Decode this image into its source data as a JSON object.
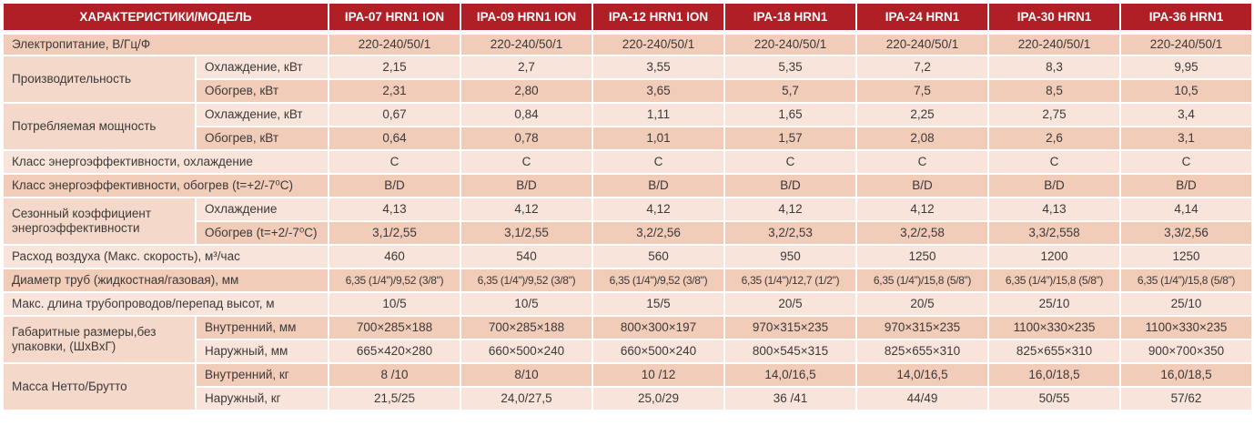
{
  "table": {
    "corner_header": "ХАРАКТЕРИСТИКИ/МОДЕЛЬ",
    "models": [
      "IPA-07 HRN1 ION",
      "IPA-09 HRN1 ION",
      "IPA-12 HRN1 ION",
      "IPA-18 HRN1",
      "IPA-24 HRN1",
      "IPA-30 HRN1",
      "IPA-36 HRN1"
    ],
    "rows": [
      {
        "full": true,
        "label": "Электропитание, В/Гц/Ф",
        "values": [
          "220-240/50/1",
          "220-240/50/1",
          "220-240/50/1",
          "220-240/50/1",
          "220-240/50/1",
          "220-240/50/1",
          "220-240/50/1"
        ]
      },
      {
        "group": "Производительность",
        "span": 2,
        "sub": "Охлаждение, кВт",
        "values": [
          "2,15",
          "2,7",
          "3,55",
          "5,35",
          "7,2",
          "8,3",
          "9,95"
        ]
      },
      {
        "sub": "Обогрев, кВт",
        "values": [
          "2,31",
          "2,80",
          "3,65",
          "5,7",
          "7,5",
          "8,5",
          "10,5"
        ]
      },
      {
        "group": "Потребляемая мощность",
        "span": 2,
        "sub": "Охлаждение, кВт",
        "values": [
          "0,67",
          "0,84",
          "1,11",
          "1,65",
          "2,25",
          "2,75",
          "3,4"
        ]
      },
      {
        "sub": "Обогрев, кВт",
        "values": [
          "0,64",
          "0,78",
          "1,01",
          "1,57",
          "2,08",
          "2,6",
          "3,1"
        ]
      },
      {
        "full": true,
        "label": "Класс энергоэффективности, охлаждение",
        "values": [
          "C",
          "C",
          "C",
          "C",
          "C",
          "C",
          "C"
        ]
      },
      {
        "full": true,
        "label": "Класс энергоэффективности, обогрев (t=+2/-7⁰C)",
        "values": [
          "B/D",
          "B/D",
          "B/D",
          "B/D",
          "B/D",
          "B/D",
          "B/D"
        ]
      },
      {
        "group": "Сезонный коэффициент энергоэффективности",
        "span": 2,
        "sub": "Охлаждение",
        "values": [
          "4,13",
          "4,12",
          "4,12",
          "4,12",
          "4,12",
          "4,13",
          "4,14"
        ]
      },
      {
        "sub": "Обогрев (t=+2/-7⁰C)",
        "values": [
          "3,1/2,55",
          "3,1/2,55",
          "3,2/2,56",
          "3,2/2,53",
          "3,2/2,58",
          "3,3/2,558",
          "3,3/2,56"
        ]
      },
      {
        "full": true,
        "label": "Расход воздуха (Макс. скорость), м³/час",
        "values": [
          "460",
          "540",
          "560",
          "950",
          "1250",
          "1200",
          "1250"
        ]
      },
      {
        "full": true,
        "label": "Диаметр труб (жидкостная/газовая), мм",
        "small": true,
        "values": [
          "6,35 (1/4\")/9,52 (3/8\")",
          "6,35 (1/4\")/9,52 (3/8\")",
          "6,35 (1/4\")/9,52 (3/8\")",
          "6,35 (1/4\")/12,7 (1/2\")",
          "6,35 (1/4”)/15,8 (5/8”)",
          "6,35 (1/4”)/15,8 (5/8”)",
          "6,35 (1/4”)/15,8 (5/8”)"
        ]
      },
      {
        "full": true,
        "label": "Макс. длина трубопроводов/перепад высот, м",
        "values": [
          "10/5",
          "10/5",
          "15/5",
          "20/5",
          "20/5",
          "25/10",
          "25/10"
        ]
      },
      {
        "group": "Габаритные размеры,без упаковки, (ШхВхГ)",
        "span": 2,
        "sub": "Внутренний, мм",
        "values": [
          "700×285×188",
          "700×285×188",
          "800×300×197",
          "970×315×235",
          "970×315×235",
          "1100×330×235",
          "1100×330×235"
        ]
      },
      {
        "sub": "Наружный, мм",
        "values": [
          "665×420×280",
          "660×500×240",
          "660×500×240",
          "800×545×315",
          "825×655×310",
          "825×655×310",
          "900×700×350"
        ]
      },
      {
        "group": "Масса Нетто/Брутто",
        "span": 2,
        "sub": "Внутренний, кг",
        "values": [
          "8 /10",
          "8/10",
          "10 /12",
          "14,0/16,5",
          "14,0/16,5",
          "16,0/18,5",
          "16,0/18,5"
        ]
      },
      {
        "sub": "Наружный, кг",
        "values": [
          "21,5/25",
          "24,0/27,5",
          "25,0/29",
          "36 /41",
          "44/49",
          "50/55",
          "57/62"
        ]
      }
    ],
    "colors": {
      "header_bg": "#B01F26",
      "header_text": "#FFFFFF",
      "row_light": "#F8E4DA",
      "row_medium": "#F1CCB9",
      "group_cell": "#F4D9CA",
      "body_text": "#3C3938"
    }
  }
}
